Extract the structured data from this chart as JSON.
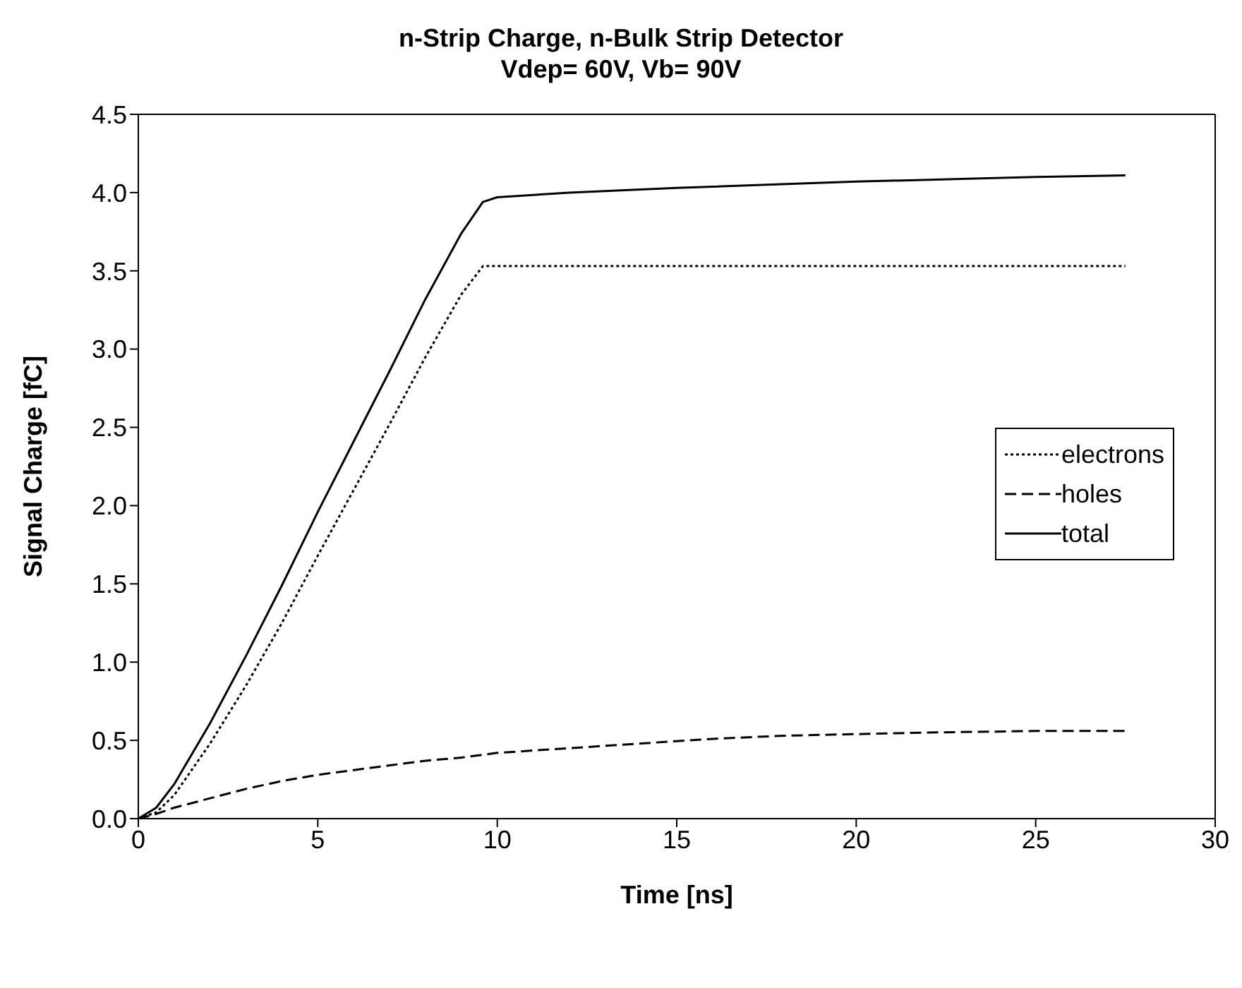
{
  "chart_data": {
    "type": "line",
    "title": "n-Strip Charge, n-Bulk Strip Detector\nVdep= 60V, Vb= 90V",
    "xlabel": "Time [ns]",
    "ylabel": "Signal Charge [fC]",
    "xlim": [
      0,
      30
    ],
    "xticks": [
      0,
      5,
      10,
      15,
      20,
      25,
      30
    ],
    "ylim": [
      0,
      4.5
    ],
    "yticks": [
      {
        "value": 0,
        "label": "0.0"
      },
      {
        "value": 0.5,
        "label": "0.5"
      },
      {
        "value": 1,
        "label": "1.0"
      },
      {
        "value": 1.5,
        "label": "1.5"
      },
      {
        "value": 2,
        "label": "2.0"
      },
      {
        "value": 2.5,
        "label": "2.5"
      },
      {
        "value": 3,
        "label": "3.0"
      },
      {
        "value": 3.5,
        "label": "3.5"
      },
      {
        "value": 4,
        "label": "4.0"
      },
      {
        "value": 4.5,
        "label": "4.5"
      }
    ],
    "legend": "right",
    "marker": "none",
    "series": [
      {
        "name": "electrons",
        "color": "#000000",
        "line_style": "dotted",
        "x": [
          0,
          0.5,
          1,
          2,
          3,
          4,
          5,
          6,
          7,
          8,
          9,
          9.6,
          10,
          15,
          20,
          25,
          27.5
        ],
        "values": [
          0,
          0.04,
          0.15,
          0.48,
          0.85,
          1.25,
          1.68,
          2.1,
          2.52,
          2.95,
          3.35,
          3.53,
          3.53,
          3.53,
          3.53,
          3.53,
          3.53
        ]
      },
      {
        "name": "holes",
        "color": "#000000",
        "line_style": "dashed",
        "x": [
          0,
          0.5,
          1,
          2,
          3,
          4,
          5,
          6,
          7,
          8,
          9,
          10,
          12,
          14,
          16,
          18,
          20,
          22,
          25,
          27.5
        ],
        "values": [
          0,
          0.03,
          0.07,
          0.13,
          0.19,
          0.24,
          0.28,
          0.31,
          0.34,
          0.37,
          0.39,
          0.42,
          0.45,
          0.48,
          0.51,
          0.53,
          0.54,
          0.55,
          0.56,
          0.56
        ]
      },
      {
        "name": "total",
        "color": "#000000",
        "line_style": "solid",
        "x": [
          0,
          0.5,
          1,
          2,
          3,
          4,
          5,
          6,
          7,
          8,
          9,
          9.6,
          10,
          12,
          15,
          20,
          25,
          27.5
        ],
        "values": [
          0,
          0.07,
          0.22,
          0.61,
          1.04,
          1.49,
          1.96,
          2.41,
          2.86,
          3.32,
          3.74,
          3.94,
          3.97,
          4.0,
          4.03,
          4.07,
          4.1,
          4.11
        ]
      }
    ]
  }
}
